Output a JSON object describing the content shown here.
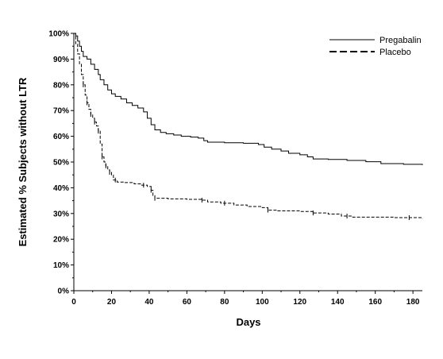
{
  "chart_data": {
    "type": "line",
    "xlabel": "Days",
    "ylabel": "Estimated % Subjects without LTR",
    "xlim": [
      0,
      185
    ],
    "ylim": [
      0,
      100
    ],
    "x_ticks": [
      0,
      20,
      40,
      60,
      80,
      100,
      120,
      140,
      160,
      180
    ],
    "x_tick_labels": [
      "0",
      "20",
      "40",
      "60",
      "80",
      "100",
      "120",
      "140",
      "160",
      "180"
    ],
    "y_ticks": [
      0,
      10,
      20,
      30,
      40,
      50,
      60,
      70,
      80,
      90,
      100
    ],
    "y_tick_labels": [
      "0%",
      "10%",
      "20%",
      "30%",
      "40%",
      "50%",
      "60%",
      "70%",
      "80%",
      "90%",
      "100%"
    ],
    "grid": false,
    "legend_position": "top-right",
    "series": [
      {
        "name": "Pregabalin",
        "style": "solid",
        "color": "#000000",
        "points": [
          [
            0,
            100
          ],
          [
            1,
            99
          ],
          [
            2,
            97
          ],
          [
            3,
            95
          ],
          [
            4,
            93
          ],
          [
            5,
            91
          ],
          [
            7,
            90
          ],
          [
            9,
            88
          ],
          [
            11,
            86
          ],
          [
            13,
            84
          ],
          [
            14,
            82
          ],
          [
            16,
            80
          ],
          [
            18,
            78
          ],
          [
            20,
            76.5
          ],
          [
            22,
            75.5
          ],
          [
            25,
            74.5
          ],
          [
            28,
            73
          ],
          [
            31,
            72
          ],
          [
            34,
            71
          ],
          [
            37,
            69.5
          ],
          [
            39,
            67
          ],
          [
            41,
            64.5
          ],
          [
            43,
            62.5
          ],
          [
            46,
            61.5
          ],
          [
            49,
            61
          ],
          [
            53,
            60.5
          ],
          [
            57,
            60
          ],
          [
            62,
            59.7
          ],
          [
            66,
            59.3
          ],
          [
            69,
            58.3
          ],
          [
            71,
            57.7
          ],
          [
            80,
            57.5
          ],
          [
            90,
            57.3
          ],
          [
            98,
            56.8
          ],
          [
            101,
            55.8
          ],
          [
            105,
            55
          ],
          [
            110,
            54.3
          ],
          [
            114,
            53.4
          ],
          [
            120,
            52.8
          ],
          [
            124,
            52
          ],
          [
            127,
            51.2
          ],
          [
            135,
            51
          ],
          [
            145,
            50.6
          ],
          [
            155,
            50.1
          ],
          [
            163,
            49.4
          ],
          [
            175,
            49.1
          ],
          [
            185,
            48.8
          ]
        ]
      },
      {
        "name": "Placebo",
        "style": "dashed",
        "color": "#000000",
        "points": [
          [
            0,
            100
          ],
          [
            1,
            96
          ],
          [
            2,
            92
          ],
          [
            3,
            88
          ],
          [
            4,
            84
          ],
          [
            5,
            80
          ],
          [
            6,
            76
          ],
          [
            7,
            73
          ],
          [
            8,
            70.5
          ],
          [
            9,
            68.5
          ],
          [
            10,
            67
          ],
          [
            11,
            65.5
          ],
          [
            12,
            64
          ],
          [
            13,
            62
          ],
          [
            14,
            57
          ],
          [
            15,
            52
          ],
          [
            16,
            50
          ],
          [
            17,
            48.5
          ],
          [
            18,
            47
          ],
          [
            19,
            46
          ],
          [
            20,
            45
          ],
          [
            21,
            43
          ],
          [
            23,
            42.2
          ],
          [
            27,
            42
          ],
          [
            32,
            41.5
          ],
          [
            36,
            41
          ],
          [
            39,
            40.5
          ],
          [
            41,
            39
          ],
          [
            42,
            37
          ],
          [
            43,
            35.9
          ],
          [
            50,
            35.7
          ],
          [
            60,
            35.5
          ],
          [
            68,
            35.2
          ],
          [
            71,
            34.5
          ],
          [
            78,
            34
          ],
          [
            85,
            33.3
          ],
          [
            92,
            32.7
          ],
          [
            100,
            32.3
          ],
          [
            103,
            31.3
          ],
          [
            108,
            31
          ],
          [
            120,
            30.8
          ],
          [
            127,
            30.2
          ],
          [
            135,
            29.8
          ],
          [
            142,
            29
          ],
          [
            148,
            28.6
          ],
          [
            160,
            28.6
          ],
          [
            170,
            28.4
          ],
          [
            185,
            28
          ]
        ],
        "censor_marks": [
          5,
          7,
          9,
          11,
          13,
          15,
          17,
          19,
          22,
          37,
          41,
          43,
          68,
          80,
          103,
          127,
          145,
          178
        ]
      }
    ]
  }
}
